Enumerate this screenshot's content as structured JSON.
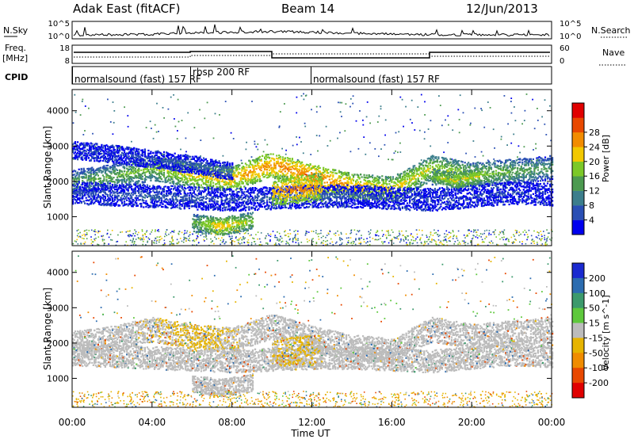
{
  "header": {
    "title": "Adak East (fitACF)",
    "beam": "Beam 14",
    "date": "12/Jun/2013"
  },
  "panels": {
    "nsky": {
      "label": "N.Sky",
      "right_label": "N.Search",
      "y_ticks": [
        "10^5",
        "10^0"
      ],
      "right_ticks": [
        "10^5",
        "10^0"
      ]
    },
    "freq": {
      "label_line1": "Freq.",
      "label_line2": "[MHz]",
      "right_label": "Nave",
      "y_ticks": [
        "18",
        "8"
      ],
      "right_ticks": [
        "60",
        "0"
      ]
    },
    "cpid": {
      "label": "CPID"
    }
  },
  "cpid_segments": [
    {
      "label": "normalsound (fast) 157 RF",
      "start_hour": 0
    },
    {
      "label": "rbsp 200 RF",
      "start_hour": 6
    },
    {
      "label": "normalsound (fast) 157 RF",
      "start_hour": 12
    }
  ],
  "chart_data": [
    {
      "type": "heatmap",
      "title": "",
      "xlabel": "Time UT",
      "ylabel": "Slant Range [km]",
      "xlim": [
        0,
        24
      ],
      "ylim": [
        180,
        4600
      ],
      "x_ticks": [
        "00:00",
        "04:00",
        "08:00",
        "12:00",
        "16:00",
        "20:00",
        "00:00"
      ],
      "y_ticks": [
        1000,
        2000,
        3000,
        4000
      ],
      "colorbar": {
        "label": "Power [dB]",
        "ticks": [
          4,
          8,
          12,
          16,
          20,
          24,
          28
        ],
        "colors": [
          "#0000ee",
          "#2a4fb4",
          "#3c7e8c",
          "#4c9a50",
          "#7cc828",
          "#f2c800",
          "#f28c00",
          "#e84800",
          "#e00000"
        ]
      },
      "bands": [
        {
          "t0": 0,
          "t1": 24,
          "r": [
            2000,
            2150,
            2400,
            2200,
            2100,
            2500,
            2150,
            1900,
            1800,
            2400,
            2200,
            2300,
            2400
          ],
          "level": [
            14,
            16,
            18,
            22,
            24,
            26,
            28,
            24,
            22,
            20,
            18,
            16,
            14
          ],
          "width": 350
        },
        {
          "t0": 0,
          "t1": 24,
          "r": [
            1700,
            1650,
            1600,
            1550,
            1500,
            1550,
            1600,
            1600,
            1550,
            1500,
            1600,
            1700,
            1650
          ],
          "level": [
            6,
            7,
            8,
            7,
            6,
            8,
            9,
            7,
            6,
            5,
            5,
            5,
            5
          ],
          "width": 320
        },
        {
          "t0": 0,
          "t1": 8,
          "r": [
            2900,
            2800,
            2650,
            2500,
            2300
          ],
          "level": [
            5,
            5,
            6,
            8,
            10
          ],
          "width": 250
        },
        {
          "t0": 6,
          "t1": 9,
          "r": [
            850,
            750,
            900
          ],
          "level": [
            16,
            24,
            18
          ],
          "width": 250
        },
        {
          "t0": 10,
          "t1": 12.5,
          "r": [
            1750,
            1800,
            1850
          ],
          "level": [
            24,
            27,
            24
          ],
          "width": 400
        },
        {
          "t0": 18,
          "t1": 20.5,
          "r": [
            2150,
            2050,
            2200
          ],
          "level": [
            18,
            22,
            20
          ],
          "width": 220
        }
      ]
    },
    {
      "type": "heatmap",
      "title": "",
      "xlabel": "Time UT",
      "ylabel": "Slant Range [km]",
      "xlim": [
        0,
        24
      ],
      "ylim": [
        180,
        4600
      ],
      "x_ticks": [
        "00:00",
        "04:00",
        "08:00",
        "12:00",
        "16:00",
        "20:00",
        "00:00"
      ],
      "y_ticks": [
        1000,
        2000,
        3000,
        4000
      ],
      "colorbar": {
        "label": "Velocity [m s^-1]",
        "ticks": [
          200,
          100,
          50,
          15,
          -15,
          -50,
          -100,
          -200
        ],
        "colors": [
          "#1a2ad0",
          "#2c6cb0",
          "#3c9a6c",
          "#5ec83c",
          "#bcbcbc",
          "#e6b400",
          "#f08c00",
          "#e84800",
          "#e00000"
        ]
      },
      "bands": [
        {
          "t0": 0,
          "t1": 24,
          "r": [
            2000,
            2150,
            2400,
            2200,
            2100,
            2500,
            2150,
            1900,
            1800,
            2400,
            2200,
            2300,
            2400
          ],
          "level": [
            0,
            0,
            -10,
            -20,
            -10,
            0,
            0,
            0,
            5,
            0,
            -5,
            0,
            0
          ],
          "width": 350
        },
        {
          "t0": 0,
          "t1": 24,
          "r": [
            1700,
            1650,
            1600,
            1550,
            1500,
            1550,
            1600,
            1600,
            1550,
            1500,
            1600,
            1700,
            1650
          ],
          "level": [
            0,
            0,
            5,
            0,
            0,
            0,
            0,
            0,
            0,
            0,
            0,
            0,
            0
          ],
          "width": 320
        },
        {
          "t0": 6,
          "t1": 9,
          "r": [
            850,
            750,
            900
          ],
          "level": [
            0,
            0,
            0
          ],
          "width": 250
        },
        {
          "t0": 10,
          "t1": 12.5,
          "r": [
            1750,
            1800,
            1850
          ],
          "level": [
            -10,
            -20,
            -10
          ],
          "width": 400
        }
      ]
    }
  ]
}
